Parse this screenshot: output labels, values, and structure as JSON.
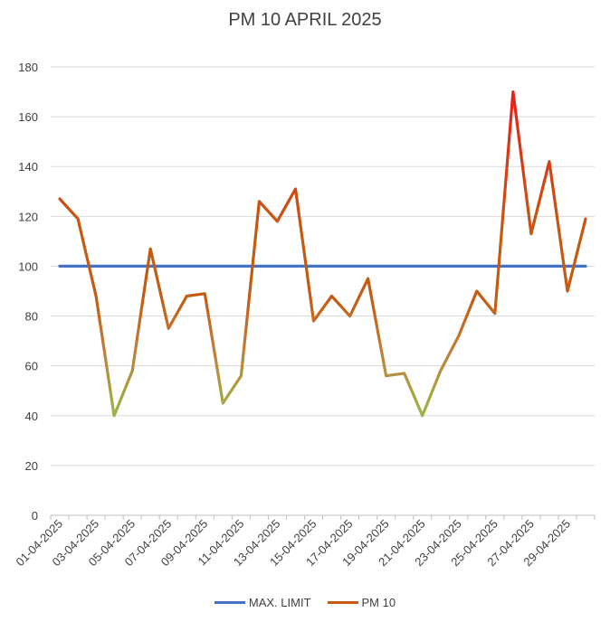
{
  "chart_data": {
    "type": "line",
    "title": "PM 10 APRIL 2025",
    "xlabel": "",
    "ylabel": "",
    "ylim": [
      0,
      180
    ],
    "yticks": [
      0,
      20,
      40,
      60,
      80,
      100,
      120,
      140,
      160,
      180
    ],
    "grid": true,
    "legend_position": "bottom",
    "categories": [
      "01-04-2025",
      "02-04-2025",
      "03-04-2025",
      "04-04-2025",
      "05-04-2025",
      "06-04-2025",
      "07-04-2025",
      "08-04-2025",
      "09-04-2025",
      "10-04-2025",
      "11-04-2025",
      "12-04-2025",
      "13-04-2025",
      "14-04-2025",
      "15-04-2025",
      "16-04-2025",
      "17-04-2025",
      "18-04-2025",
      "19-04-2025",
      "20-04-2025",
      "21-04-2025",
      "22-04-2025",
      "23-04-2025",
      "24-04-2025",
      "25-04-2025",
      "26-04-2025",
      "27-04-2025",
      "28-04-2025",
      "29-04-2025",
      "30-04-2025"
    ],
    "tick_labels": [
      "01-04-2025",
      "03-04-2025",
      "05-04-2025",
      "07-04-2025",
      "09-04-2025",
      "11-04-2025",
      "13-04-2025",
      "15-04-2025",
      "17-04-2025",
      "19-04-2025",
      "21-04-2025",
      "23-04-2025",
      "25-04-2025",
      "27-04-2025",
      "29-04-2025"
    ],
    "series": [
      {
        "name": "MAX. LIMIT",
        "color": "#4472C4",
        "values": [
          100,
          100,
          100,
          100,
          100,
          100,
          100,
          100,
          100,
          100,
          100,
          100,
          100,
          100,
          100,
          100,
          100,
          100,
          100,
          100,
          100,
          100,
          100,
          100,
          100,
          100,
          100,
          100,
          100,
          100
        ]
      },
      {
        "name": "PM 10",
        "color": "#C55A11",
        "values": [
          127,
          119,
          88,
          40,
          58,
          107,
          75,
          88,
          89,
          45,
          56,
          126,
          118,
          131,
          78,
          88,
          80,
          95,
          56,
          57,
          40,
          58,
          72,
          90,
          81,
          170,
          113,
          142,
          90,
          119
        ]
      }
    ],
    "gradient_colors": {
      "low": "#92C149",
      "mid": "#C0803A",
      "high": "#C55A11",
      "peak": "#E8201A"
    }
  }
}
